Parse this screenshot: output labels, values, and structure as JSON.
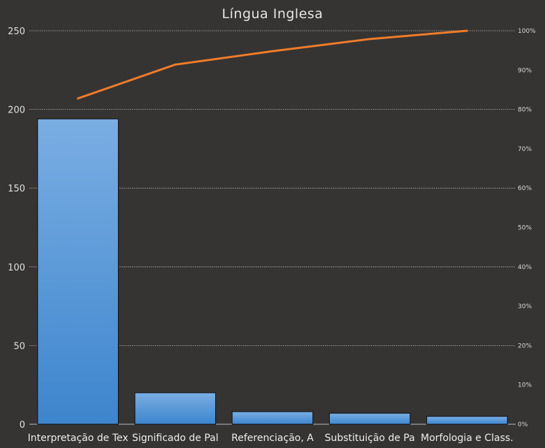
{
  "chart_data": {
    "type": "bar",
    "title": "Língua Inglesa",
    "categories": [
      "Interpretação de Tex",
      "Significado de Pal",
      "Referenciação, A",
      "Substituição de Pa",
      "Morfologia e Class."
    ],
    "series": [
      {
        "type": "bar",
        "values": [
          194,
          20,
          8,
          7,
          5
        ]
      },
      {
        "type": "line",
        "axis": "secondary",
        "values": [
          0.828,
          0.914,
          0.948,
          0.979,
          1.0
        ]
      }
    ],
    "ylim": [
      0,
      250
    ],
    "yticks": [
      "0",
      "50",
      "100",
      "150",
      "200",
      "250"
    ],
    "y2lim": [
      0,
      1
    ],
    "y2ticks": [
      "0%",
      "10%",
      "20%",
      "30%",
      "40%",
      "50%",
      "60%",
      "70%",
      "80%",
      "90%",
      "100%"
    ],
    "grid": true,
    "colors": {
      "background": "#353433",
      "bar_top": "#7aaee3",
      "bar_bottom": "#3d85cd",
      "line": "#f07c2a",
      "grid": "#bdbdbd"
    }
  }
}
